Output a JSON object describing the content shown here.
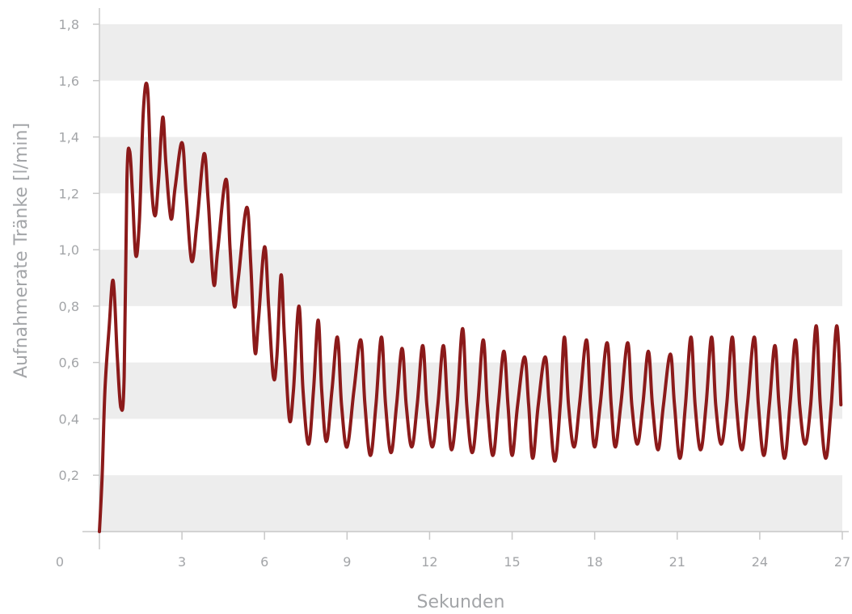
{
  "chart_data": {
    "type": "line",
    "xlabel": "Sekunden",
    "ylabel": "Aufnahmerate Tränke [l/min]",
    "xlim": [
      0,
      27
    ],
    "ylim": [
      0,
      1.8
    ],
    "x_ticks": [
      0,
      3,
      6,
      9,
      12,
      15,
      18,
      21,
      24,
      27
    ],
    "x_tick_labels": [
      "0",
      "3",
      "6",
      "9",
      "12",
      "15",
      "18",
      "21",
      "24",
      "27"
    ],
    "y_ticks": [
      0.2,
      0.4,
      0.6,
      0.8,
      1.0,
      1.2,
      1.4,
      1.6,
      1.8
    ],
    "y_tick_labels": [
      "0,2",
      "0,4",
      "0,6",
      "0,8",
      "1,0",
      "1,2",
      "1,4",
      "1,6",
      "1,8"
    ],
    "background": "alternating horizontal bands (light gray / white)",
    "colors": {
      "line": "#8b1a1a",
      "band": "#ededed",
      "text": "#a3a5a8",
      "axis": "#c8c8c8"
    },
    "series": [
      {
        "values": [
          [
            0.0,
            0.0
          ],
          [
            0.1,
            0.2
          ],
          [
            0.2,
            0.5
          ],
          [
            0.35,
            0.72
          ],
          [
            0.5,
            0.89
          ],
          [
            0.65,
            0.62
          ],
          [
            0.78,
            0.44
          ],
          [
            0.9,
            0.55
          ],
          [
            1.0,
            1.25
          ],
          [
            1.1,
            1.35
          ],
          [
            1.2,
            1.2
          ],
          [
            1.32,
            0.98
          ],
          [
            1.45,
            1.1
          ],
          [
            1.6,
            1.5
          ],
          [
            1.75,
            1.57
          ],
          [
            1.88,
            1.25
          ],
          [
            2.02,
            1.12
          ],
          [
            2.15,
            1.25
          ],
          [
            2.3,
            1.47
          ],
          [
            2.42,
            1.3
          ],
          [
            2.6,
            1.11
          ],
          [
            2.75,
            1.22
          ],
          [
            3.0,
            1.38
          ],
          [
            3.15,
            1.2
          ],
          [
            3.35,
            0.96
          ],
          [
            3.55,
            1.1
          ],
          [
            3.8,
            1.34
          ],
          [
            3.95,
            1.18
          ],
          [
            4.15,
            0.88
          ],
          [
            4.3,
            1.0
          ],
          [
            4.6,
            1.25
          ],
          [
            4.75,
            1.0
          ],
          [
            4.9,
            0.8
          ],
          [
            5.05,
            0.9
          ],
          [
            5.35,
            1.15
          ],
          [
            5.5,
            0.95
          ],
          [
            5.65,
            0.64
          ],
          [
            5.78,
            0.75
          ],
          [
            6.0,
            1.01
          ],
          [
            6.15,
            0.8
          ],
          [
            6.32,
            0.55
          ],
          [
            6.45,
            0.62
          ],
          [
            6.6,
            0.91
          ],
          [
            6.72,
            0.7
          ],
          [
            6.9,
            0.4
          ],
          [
            7.05,
            0.5
          ],
          [
            7.25,
            0.8
          ],
          [
            7.4,
            0.5
          ],
          [
            7.6,
            0.31
          ],
          [
            7.78,
            0.5
          ],
          [
            7.95,
            0.75
          ],
          [
            8.08,
            0.5
          ],
          [
            8.25,
            0.32
          ],
          [
            8.45,
            0.5
          ],
          [
            8.65,
            0.69
          ],
          [
            8.8,
            0.45
          ],
          [
            9.0,
            0.3
          ],
          [
            9.25,
            0.5
          ],
          [
            9.5,
            0.68
          ],
          [
            9.65,
            0.45
          ],
          [
            9.85,
            0.27
          ],
          [
            10.05,
            0.45
          ],
          [
            10.25,
            0.69
          ],
          [
            10.4,
            0.45
          ],
          [
            10.6,
            0.28
          ],
          [
            10.8,
            0.45
          ],
          [
            11.0,
            0.65
          ],
          [
            11.15,
            0.45
          ],
          [
            11.35,
            0.3
          ],
          [
            11.55,
            0.45
          ],
          [
            11.75,
            0.66
          ],
          [
            11.9,
            0.45
          ],
          [
            12.1,
            0.3
          ],
          [
            12.3,
            0.45
          ],
          [
            12.5,
            0.66
          ],
          [
            12.65,
            0.45
          ],
          [
            12.8,
            0.29
          ],
          [
            13.0,
            0.45
          ],
          [
            13.2,
            0.72
          ],
          [
            13.35,
            0.45
          ],
          [
            13.55,
            0.28
          ],
          [
            13.75,
            0.45
          ],
          [
            13.95,
            0.68
          ],
          [
            14.1,
            0.45
          ],
          [
            14.3,
            0.27
          ],
          [
            14.5,
            0.45
          ],
          [
            14.7,
            0.64
          ],
          [
            14.85,
            0.45
          ],
          [
            15.0,
            0.27
          ],
          [
            15.2,
            0.45
          ],
          [
            15.45,
            0.62
          ],
          [
            15.6,
            0.45
          ],
          [
            15.75,
            0.26
          ],
          [
            15.95,
            0.45
          ],
          [
            16.2,
            0.62
          ],
          [
            16.35,
            0.45
          ],
          [
            16.55,
            0.25
          ],
          [
            16.75,
            0.45
          ],
          [
            16.9,
            0.69
          ],
          [
            17.05,
            0.45
          ],
          [
            17.25,
            0.3
          ],
          [
            17.45,
            0.45
          ],
          [
            17.7,
            0.68
          ],
          [
            17.85,
            0.45
          ],
          [
            18.0,
            0.3
          ],
          [
            18.2,
            0.45
          ],
          [
            18.45,
            0.67
          ],
          [
            18.6,
            0.45
          ],
          [
            18.75,
            0.3
          ],
          [
            18.95,
            0.45
          ],
          [
            19.2,
            0.67
          ],
          [
            19.35,
            0.45
          ],
          [
            19.55,
            0.31
          ],
          [
            19.75,
            0.45
          ],
          [
            19.95,
            0.64
          ],
          [
            20.1,
            0.45
          ],
          [
            20.3,
            0.29
          ],
          [
            20.5,
            0.45
          ],
          [
            20.75,
            0.63
          ],
          [
            20.9,
            0.45
          ],
          [
            21.1,
            0.26
          ],
          [
            21.3,
            0.45
          ],
          [
            21.5,
            0.69
          ],
          [
            21.65,
            0.45
          ],
          [
            21.85,
            0.29
          ],
          [
            22.05,
            0.45
          ],
          [
            22.25,
            0.69
          ],
          [
            22.4,
            0.45
          ],
          [
            22.6,
            0.31
          ],
          [
            22.8,
            0.45
          ],
          [
            23.0,
            0.69
          ],
          [
            23.15,
            0.45
          ],
          [
            23.35,
            0.29
          ],
          [
            23.55,
            0.45
          ],
          [
            23.8,
            0.69
          ],
          [
            23.95,
            0.45
          ],
          [
            24.15,
            0.27
          ],
          [
            24.35,
            0.45
          ],
          [
            24.55,
            0.66
          ],
          [
            24.7,
            0.45
          ],
          [
            24.9,
            0.26
          ],
          [
            25.1,
            0.45
          ],
          [
            25.3,
            0.68
          ],
          [
            25.45,
            0.45
          ],
          [
            25.65,
            0.31
          ],
          [
            25.85,
            0.45
          ],
          [
            26.05,
            0.73
          ],
          [
            26.2,
            0.45
          ],
          [
            26.4,
            0.26
          ],
          [
            26.6,
            0.45
          ],
          [
            26.8,
            0.73
          ],
          [
            26.95,
            0.45
          ]
        ]
      }
    ]
  }
}
